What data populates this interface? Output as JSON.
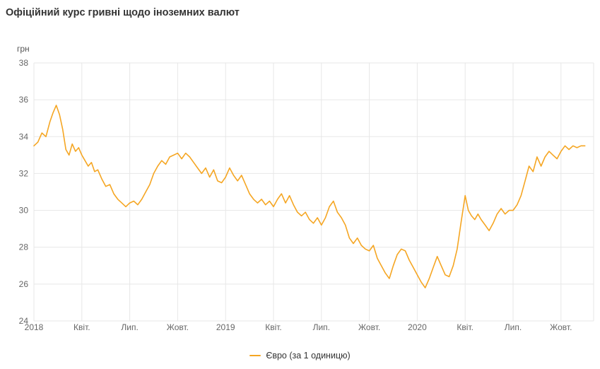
{
  "chart_data": {
    "type": "line",
    "title": "Офіційний курс гривні щодо іноземних валют",
    "xlabel": "",
    "ylabel": "грн",
    "ylim": [
      24,
      38
    ],
    "xlim": [
      0,
      35.1
    ],
    "x_unit": "months since Jan 2018",
    "grid": true,
    "yticks": [
      24,
      26,
      28,
      30,
      32,
      34,
      36,
      38
    ],
    "xticks": [
      {
        "pos": 0,
        "label": "2018"
      },
      {
        "pos": 3,
        "label": "Квіт."
      },
      {
        "pos": 6,
        "label": "Лип."
      },
      {
        "pos": 9,
        "label": "Жовт."
      },
      {
        "pos": 12,
        "label": "2019"
      },
      {
        "pos": 15,
        "label": "Квіт."
      },
      {
        "pos": 18,
        "label": "Лип."
      },
      {
        "pos": 21,
        "label": "Жовт."
      },
      {
        "pos": 24,
        "label": "2020"
      },
      {
        "pos": 27,
        "label": "Квіт."
      },
      {
        "pos": 30,
        "label": "Лип."
      },
      {
        "pos": 33,
        "label": "Жовт."
      }
    ],
    "legend": {
      "position": "bottom",
      "entries": [
        {
          "label": "Євро (за 1 одиницю)",
          "color": "#F5A623"
        }
      ]
    },
    "series": [
      {
        "name": "Євро (за 1 одиницю)",
        "color": "#F5A623",
        "points": [
          [
            0.0,
            33.5
          ],
          [
            0.25,
            33.7
          ],
          [
            0.5,
            34.2
          ],
          [
            0.75,
            34.0
          ],
          [
            1.0,
            34.8
          ],
          [
            1.2,
            35.3
          ],
          [
            1.4,
            35.7
          ],
          [
            1.6,
            35.2
          ],
          [
            1.8,
            34.4
          ],
          [
            2.0,
            33.3
          ],
          [
            2.2,
            33.0
          ],
          [
            2.4,
            33.6
          ],
          [
            2.6,
            33.2
          ],
          [
            2.8,
            33.4
          ],
          [
            3.0,
            33.0
          ],
          [
            3.2,
            32.7
          ],
          [
            3.4,
            32.4
          ],
          [
            3.6,
            32.6
          ],
          [
            3.8,
            32.1
          ],
          [
            4.0,
            32.2
          ],
          [
            4.25,
            31.7
          ],
          [
            4.5,
            31.3
          ],
          [
            4.75,
            31.4
          ],
          [
            5.0,
            30.9
          ],
          [
            5.25,
            30.6
          ],
          [
            5.5,
            30.4
          ],
          [
            5.75,
            30.2
          ],
          [
            6.0,
            30.4
          ],
          [
            6.25,
            30.5
          ],
          [
            6.5,
            30.3
          ],
          [
            6.75,
            30.6
          ],
          [
            7.0,
            31.0
          ],
          [
            7.25,
            31.4
          ],
          [
            7.5,
            32.0
          ],
          [
            7.75,
            32.4
          ],
          [
            8.0,
            32.7
          ],
          [
            8.25,
            32.5
          ],
          [
            8.5,
            32.9
          ],
          [
            8.75,
            33.0
          ],
          [
            9.0,
            33.1
          ],
          [
            9.25,
            32.8
          ],
          [
            9.5,
            33.1
          ],
          [
            9.75,
            32.9
          ],
          [
            10.0,
            32.6
          ],
          [
            10.25,
            32.3
          ],
          [
            10.5,
            32.0
          ],
          [
            10.75,
            32.3
          ],
          [
            11.0,
            31.8
          ],
          [
            11.25,
            32.2
          ],
          [
            11.5,
            31.6
          ],
          [
            11.75,
            31.5
          ],
          [
            12.0,
            31.8
          ],
          [
            12.25,
            32.3
          ],
          [
            12.5,
            31.9
          ],
          [
            12.75,
            31.6
          ],
          [
            13.0,
            31.9
          ],
          [
            13.25,
            31.4
          ],
          [
            13.5,
            30.9
          ],
          [
            13.75,
            30.6
          ],
          [
            14.0,
            30.4
          ],
          [
            14.25,
            30.6
          ],
          [
            14.5,
            30.3
          ],
          [
            14.75,
            30.5
          ],
          [
            15.0,
            30.2
          ],
          [
            15.25,
            30.6
          ],
          [
            15.5,
            30.9
          ],
          [
            15.75,
            30.4
          ],
          [
            16.0,
            30.8
          ],
          [
            16.25,
            30.3
          ],
          [
            16.5,
            29.9
          ],
          [
            16.75,
            29.7
          ],
          [
            17.0,
            29.9
          ],
          [
            17.25,
            29.5
          ],
          [
            17.5,
            29.3
          ],
          [
            17.75,
            29.6
          ],
          [
            18.0,
            29.2
          ],
          [
            18.25,
            29.6
          ],
          [
            18.5,
            30.2
          ],
          [
            18.75,
            30.5
          ],
          [
            19.0,
            29.9
          ],
          [
            19.25,
            29.6
          ],
          [
            19.5,
            29.2
          ],
          [
            19.75,
            28.5
          ],
          [
            20.0,
            28.2
          ],
          [
            20.25,
            28.5
          ],
          [
            20.5,
            28.1
          ],
          [
            20.75,
            27.9
          ],
          [
            21.0,
            27.8
          ],
          [
            21.25,
            28.1
          ],
          [
            21.5,
            27.4
          ],
          [
            21.75,
            27.0
          ],
          [
            22.0,
            26.6
          ],
          [
            22.25,
            26.3
          ],
          [
            22.5,
            27.0
          ],
          [
            22.75,
            27.6
          ],
          [
            23.0,
            27.9
          ],
          [
            23.25,
            27.8
          ],
          [
            23.5,
            27.3
          ],
          [
            23.75,
            26.9
          ],
          [
            24.0,
            26.5
          ],
          [
            24.25,
            26.1
          ],
          [
            24.5,
            25.8
          ],
          [
            24.75,
            26.3
          ],
          [
            25.0,
            26.9
          ],
          [
            25.25,
            27.5
          ],
          [
            25.5,
            27.0
          ],
          [
            25.75,
            26.5
          ],
          [
            26.0,
            26.4
          ],
          [
            26.25,
            27.0
          ],
          [
            26.5,
            27.9
          ],
          [
            26.75,
            29.4
          ],
          [
            27.0,
            30.8
          ],
          [
            27.2,
            30.0
          ],
          [
            27.4,
            29.7
          ],
          [
            27.6,
            29.5
          ],
          [
            27.8,
            29.8
          ],
          [
            28.0,
            29.5
          ],
          [
            28.25,
            29.2
          ],
          [
            28.5,
            28.9
          ],
          [
            28.75,
            29.3
          ],
          [
            29.0,
            29.8
          ],
          [
            29.25,
            30.1
          ],
          [
            29.5,
            29.8
          ],
          [
            29.75,
            30.0
          ],
          [
            30.0,
            30.0
          ],
          [
            30.25,
            30.3
          ],
          [
            30.5,
            30.8
          ],
          [
            30.75,
            31.6
          ],
          [
            31.0,
            32.4
          ],
          [
            31.25,
            32.1
          ],
          [
            31.5,
            32.9
          ],
          [
            31.75,
            32.4
          ],
          [
            32.0,
            32.9
          ],
          [
            32.25,
            33.2
          ],
          [
            32.5,
            33.0
          ],
          [
            32.75,
            32.8
          ],
          [
            33.0,
            33.2
          ],
          [
            33.25,
            33.5
          ],
          [
            33.5,
            33.3
          ],
          [
            33.75,
            33.5
          ],
          [
            34.0,
            33.4
          ],
          [
            34.25,
            33.5
          ],
          [
            34.5,
            33.5
          ]
        ]
      }
    ]
  },
  "colors": {
    "accent": "#F5A623",
    "grid": "#e7e7e7",
    "axis_text": "#666666",
    "title_text": "#333333"
  }
}
